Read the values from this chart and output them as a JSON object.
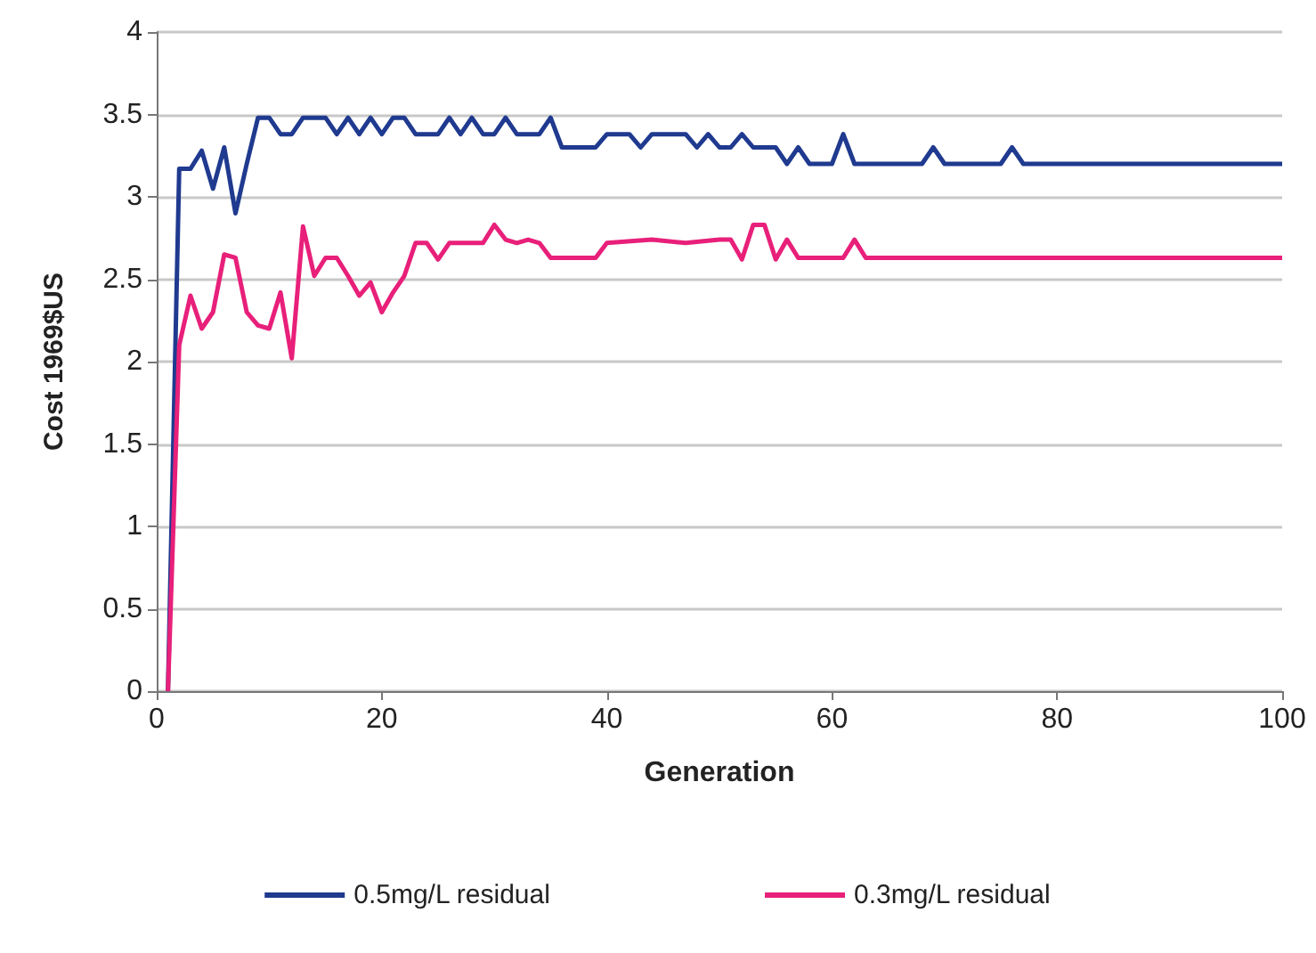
{
  "chart_data": {
    "type": "line",
    "xlabel": "Generation",
    "ylabel": "Cost 1969$US",
    "xlim": [
      0,
      100
    ],
    "xticks": [
      0,
      20,
      40,
      60,
      80,
      100
    ],
    "ylim": [
      0,
      4
    ],
    "yticks": [
      0,
      0.5,
      1,
      1.5,
      2,
      2.5,
      3,
      3.5,
      4
    ],
    "grid": "y",
    "legend": "bottom",
    "marker": "none",
    "line_style": "solid",
    "series": [
      {
        "name": "0.5mg/L residual",
        "color": "#1f3a8f",
        "x": [
          1,
          2,
          3,
          4,
          5,
          6,
          7,
          8,
          9,
          10,
          11,
          12,
          13,
          14,
          15,
          16,
          17,
          18,
          19,
          20,
          21,
          22,
          23,
          24,
          25,
          26,
          27,
          28,
          29,
          30,
          31,
          32,
          33,
          34,
          35,
          36,
          37,
          39,
          40,
          42,
          43,
          44,
          47,
          48,
          49,
          50,
          51,
          52,
          53,
          55,
          56,
          57,
          58,
          60,
          61,
          62,
          68,
          69,
          70,
          75,
          76,
          77,
          100
        ],
        "values": [
          0,
          3.17,
          3.17,
          3.28,
          3.05,
          3.3,
          2.9,
          3.2,
          3.48,
          3.48,
          3.38,
          3.38,
          3.48,
          3.48,
          3.48,
          3.38,
          3.48,
          3.38,
          3.48,
          3.38,
          3.48,
          3.48,
          3.38,
          3.38,
          3.38,
          3.48,
          3.38,
          3.48,
          3.38,
          3.38,
          3.48,
          3.38,
          3.38,
          3.38,
          3.48,
          3.3,
          3.3,
          3.3,
          3.38,
          3.38,
          3.3,
          3.38,
          3.38,
          3.3,
          3.38,
          3.3,
          3.3,
          3.38,
          3.3,
          3.3,
          3.2,
          3.3,
          3.2,
          3.2,
          3.38,
          3.2,
          3.2,
          3.3,
          3.2,
          3.2,
          3.3,
          3.2,
          3.2
        ]
      },
      {
        "name": "0.3mg/L residual",
        "color": "#e8207a",
        "x": [
          1,
          2,
          3,
          4,
          5,
          6,
          7,
          8,
          9,
          10,
          11,
          12,
          13,
          14,
          15,
          16,
          17,
          18,
          19,
          20,
          21,
          22,
          23,
          24,
          25,
          26,
          29,
          30,
          31,
          32,
          33,
          34,
          35,
          39,
          40,
          44,
          47,
          50,
          51,
          52,
          53,
          54,
          55,
          56,
          57,
          61,
          62,
          63,
          100
        ],
        "values": [
          0,
          2.1,
          2.4,
          2.2,
          2.3,
          2.65,
          2.63,
          2.3,
          2.22,
          2.2,
          2.42,
          2.02,
          2.82,
          2.52,
          2.63,
          2.63,
          2.52,
          2.4,
          2.48,
          2.3,
          2.42,
          2.52,
          2.72,
          2.72,
          2.62,
          2.72,
          2.72,
          2.83,
          2.74,
          2.72,
          2.74,
          2.72,
          2.63,
          2.63,
          2.72,
          2.74,
          2.72,
          2.74,
          2.74,
          2.62,
          2.83,
          2.83,
          2.62,
          2.74,
          2.63,
          2.63,
          2.74,
          2.63,
          2.63
        ]
      }
    ]
  }
}
